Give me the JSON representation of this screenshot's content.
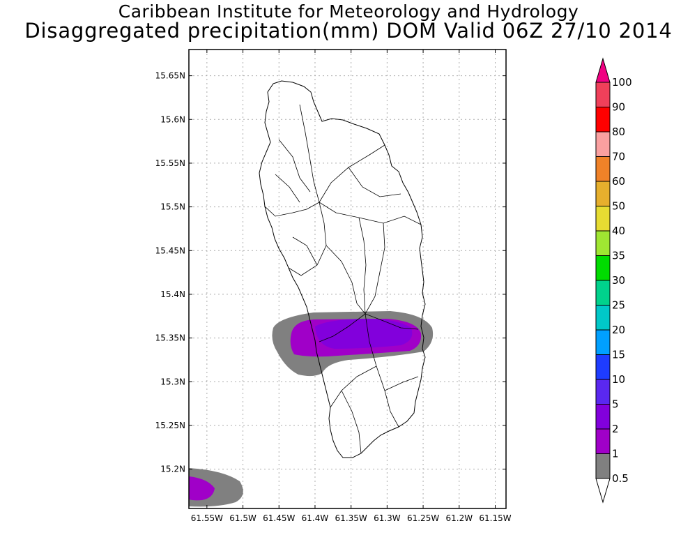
{
  "header": {
    "institute": "Caribbean Institute for Meteorology and Hydrology",
    "title": "Disaggregated precipitation(mm) DOM Valid 06Z 27/10 2014"
  },
  "map": {
    "lat_ticks": [
      "15.65N",
      "15.6N",
      "15.55N",
      "15.5N",
      "15.45N",
      "15.4N",
      "15.35N",
      "15.3N",
      "15.25N",
      "15.2N"
    ],
    "lon_ticks": [
      "61.55W",
      "61.5W",
      "61.45W",
      "61.4W",
      "61.35W",
      "61.3W",
      "61.25W",
      "61.2W",
      "61.15W"
    ],
    "lat_range": [
      15.155,
      15.68
    ],
    "lon_range": [
      61.575,
      61.135
    ],
    "grid": true,
    "features": [
      "island-outline",
      "watershed-boundaries",
      "precipitation-contours"
    ]
  },
  "legend": {
    "labels": [
      "0.5",
      "1",
      "2",
      "5",
      "10",
      "15",
      "20",
      "25",
      "30",
      "35",
      "40",
      "50",
      "60",
      "70",
      "80",
      "90",
      "100"
    ],
    "colors": [
      "#808080",
      "#a000c8",
      "#8200dc",
      "#5a28f0",
      "#1e3cff",
      "#00a0ff",
      "#00c8c8",
      "#00d28c",
      "#00dc00",
      "#a0e632",
      "#e6dc32",
      "#e6af2d",
      "#f08228",
      "#faa0a0",
      "#ff0000",
      "#f0405a",
      "#f00082"
    ],
    "under_color": "#ffffff",
    "over_color": "#f00082"
  }
}
